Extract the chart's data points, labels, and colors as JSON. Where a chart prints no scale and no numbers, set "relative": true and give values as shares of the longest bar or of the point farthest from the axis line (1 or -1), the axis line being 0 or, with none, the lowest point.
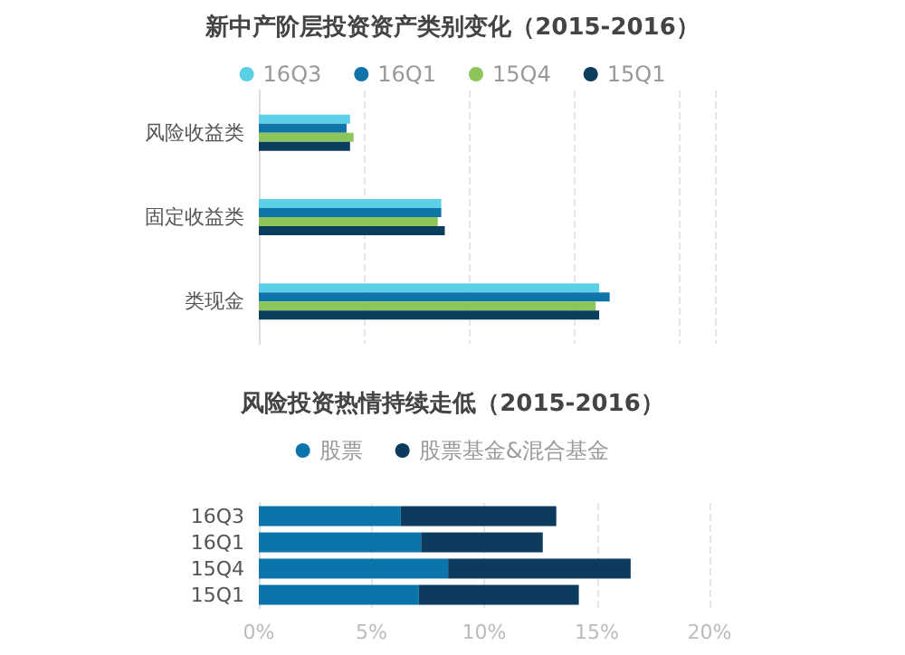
{
  "chart_data": [
    {
      "type": "bar",
      "orientation": "horizontal",
      "relative": true,
      "title": "新中产阶层投资资产类别变化（2015-2016）",
      "categories": [
        "风险收益类",
        "固定收益类",
        "类现金"
      ],
      "series": [
        {
          "name": "16Q3",
          "color": "#5bcfe6",
          "values": [
            0.26,
            0.52,
            0.97
          ]
        },
        {
          "name": "16Q1",
          "color": "#0f75a8",
          "values": [
            0.25,
            0.52,
            1
          ]
        },
        {
          "name": "15Q4",
          "color": "#8cc65a",
          "values": [
            0.27,
            0.51,
            0.96
          ]
        },
        {
          "name": "15Q1",
          "color": "#0b3d5c",
          "values": [
            0.26,
            0.53,
            0.97
          ]
        }
      ],
      "grid": "x",
      "legend": "top",
      "marker": "circle"
    },
    {
      "type": "bar",
      "orientation": "horizontal",
      "stacked": true,
      "title": "风险投资热情持续走低（2015-2016）",
      "categories": [
        "16Q3",
        "16Q1",
        "15Q4",
        "15Q1"
      ],
      "series": [
        {
          "name": "股票",
          "color": "#0b74aa",
          "values": [
            6.3,
            7.2,
            8.4,
            7.1
          ]
        },
        {
          "name": "股票基金&混合基金",
          "color": "#0c3b5e",
          "values": [
            6.9,
            5.4,
            8.1,
            7.1
          ]
        }
      ],
      "xlim": [
        0,
        20
      ],
      "xticks": [
        {
          "value": 0,
          "label": "0%"
        },
        {
          "value": 5,
          "label": "5%"
        },
        {
          "value": 10,
          "label": "10%"
        },
        {
          "value": 15,
          "label": "15%"
        },
        {
          "value": 20,
          "label": "20%"
        }
      ],
      "grid": "x",
      "legend": "top",
      "marker": "circle"
    }
  ]
}
